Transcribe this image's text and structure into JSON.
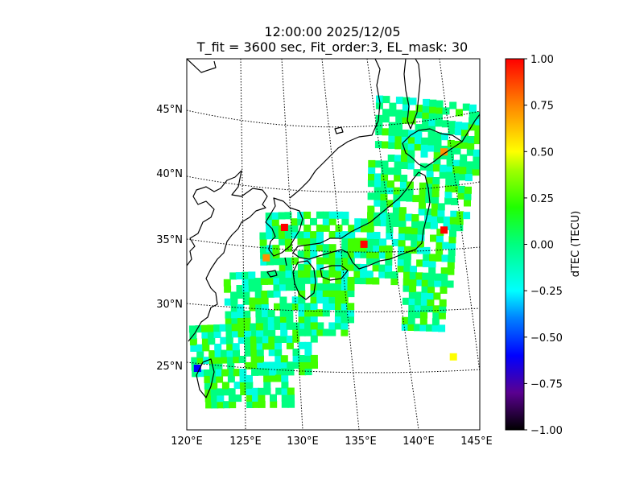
{
  "title": {
    "line1": "12:00:00 2025/12/05",
    "line2": "T_fit = 3600 sec, Fit_order:3, EL_mask: 30"
  },
  "map": {
    "projection": "conic",
    "lon_range": [
      120,
      145
    ],
    "lat_range": [
      20,
      49
    ],
    "lat_labels": [
      "45°N",
      "40°N",
      "35°N",
      "30°N",
      "25°N"
    ],
    "lon_labels": [
      "120°E",
      "125°E",
      "130°E",
      "135°E",
      "140°E",
      "145°E"
    ],
    "graticule": "dotted",
    "coastline_color": "#000000"
  },
  "colorbar": {
    "label": "dTEC (TECU)",
    "min": -1.0,
    "max": 1.0,
    "ticks": [
      "1.00",
      "0.75",
      "0.50",
      "0.25",
      "0.00",
      "−0.25",
      "−0.50",
      "−0.75",
      "−1.00"
    ],
    "colormap": [
      "#000000",
      "#5a0090",
      "#0000ff",
      "#00c0ff",
      "#00ffe0",
      "#00ff80",
      "#40ff00",
      "#c0ff00",
      "#ffff00",
      "#ff9000",
      "#ff0000"
    ]
  },
  "tec_pixels": [
    {
      "lon": 135.0,
      "lat": 34.3,
      "dtec": 1.0
    },
    {
      "lon": 128.7,
      "lat": 35.6,
      "dtec": 0.95
    },
    {
      "lon": 141.3,
      "lat": 35.7,
      "dtec": 0.9
    },
    {
      "lon": 141.0,
      "lat": 41.8,
      "dtec": 0.85
    },
    {
      "lon": 121.2,
      "lat": 24.9,
      "dtec": -0.55
    },
    {
      "lon": 127.2,
      "lat": 33.3,
      "dtec": 0.7
    },
    {
      "lon": 142.6,
      "lat": 25.8,
      "dtec": 0.5
    }
  ]
}
